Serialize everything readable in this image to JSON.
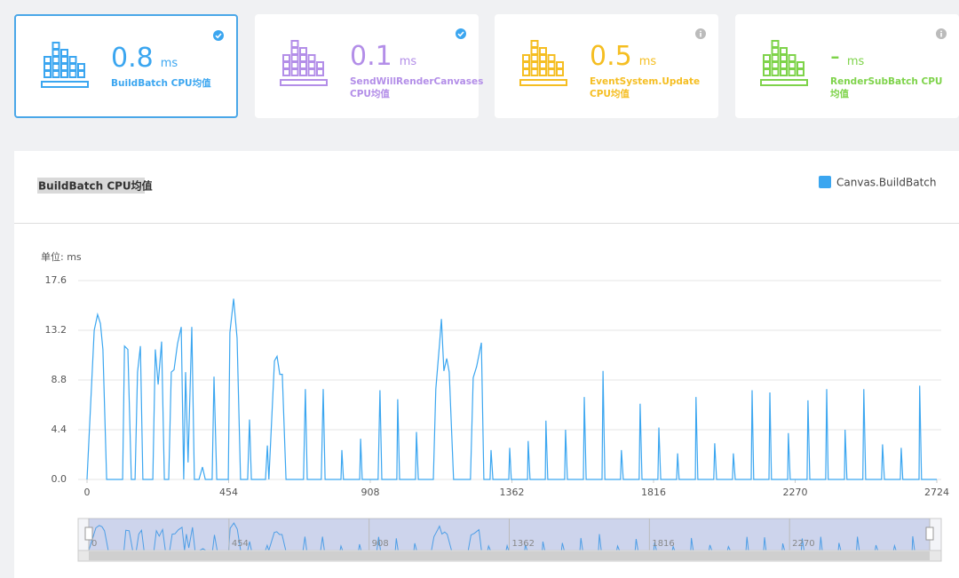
{
  "cards": [
    {
      "value": "0.8",
      "unit": "ms",
      "label": "BuildBatch CPU均值",
      "color": "#3ba6f0"
    },
    {
      "value": "0.1",
      "unit": "ms",
      "label": "SendWillRenderCanvases CPU均值",
      "color": "#b38ee8"
    },
    {
      "value": "0.5",
      "unit": "ms",
      "label": "EventSystem.Update CPU均值",
      "color": "#f5be22"
    },
    {
      "value": "-",
      "unit": "ms",
      "label": "RenderSubBatch CPU均值",
      "color": "#7ed34a"
    }
  ],
  "chart_data": {
    "type": "line",
    "title": "BuildBatch CPU均值",
    "unit_label": "单位: ms",
    "x": [
      0,
      23,
      34,
      43,
      51,
      63,
      114,
      120,
      131,
      142,
      154,
      162,
      171,
      179,
      211,
      219,
      228,
      239,
      248,
      262,
      270,
      279,
      290,
      302,
      310,
      316,
      324,
      336,
      344,
      359,
      370,
      379,
      401,
      407,
      416,
      453,
      458,
      470,
      481,
      492,
      515,
      521,
      527,
      572,
      578,
      583,
      601,
      609,
      618,
      626,
      638,
      694,
      700,
      706,
      751,
      757,
      763,
      814,
      817,
      822,
      874,
      877,
      882,
      933,
      939,
      945,
      993,
      996,
      1002,
      1053,
      1056,
      1062,
      1110,
      1118,
      1130,
      1136,
      1144,
      1153,
      1161,
      1175,
      1229,
      1238,
      1249,
      1264,
      1272,
      1292,
      1295,
      1301,
      1352,
      1355,
      1360,
      1412,
      1414,
      1420,
      1469,
      1471,
      1477,
      1531,
      1534,
      1540,
      1591,
      1594,
      1600,
      1651,
      1654,
      1660,
      1710,
      1713,
      1719,
      1770,
      1773,
      1779,
      1830,
      1833,
      1839,
      1890,
      1893,
      1898,
      1950,
      1952,
      1958,
      2009,
      2012,
      2018,
      2069,
      2072,
      2078,
      2129,
      2132,
      2137,
      2186,
      2189,
      2194,
      2246,
      2248,
      2254,
      2308,
      2311,
      2317,
      2368,
      2371,
      2376,
      2428,
      2430,
      2436,
      2487,
      2490,
      2496,
      2547,
      2550,
      2556,
      2607,
      2610,
      2615,
      2667,
      2669,
      2675,
      2724
    ],
    "series": [
      {
        "name": "Canvas.BuildBatch",
        "color": "#3ba6f0",
        "values": [
          0,
          13.2,
          14.6,
          13.8,
          11.5,
          0,
          0,
          11.8,
          11.5,
          0,
          0,
          9.5,
          11.8,
          0,
          0,
          11.5,
          8.4,
          12.2,
          0,
          0,
          9.5,
          9.7,
          12,
          13.5,
          0,
          9.5,
          1.5,
          13.5,
          0,
          0,
          1.1,
          0,
          0,
          9.1,
          0,
          0,
          13,
          16,
          12.5,
          0,
          0,
          5.3,
          0,
          0,
          3,
          0,
          10.5,
          10.9,
          9.3,
          9.3,
          0,
          0,
          8,
          0,
          0,
          8,
          0,
          0,
          2.6,
          0,
          0,
          3.6,
          0,
          0,
          7.9,
          0,
          0,
          7.1,
          0,
          0,
          4.2,
          0,
          0,
          8,
          12,
          14.2,
          9.6,
          10.7,
          9.5,
          0,
          0,
          9,
          10,
          12.1,
          0,
          0,
          2.6,
          0,
          0,
          2.8,
          0,
          0,
          3.4,
          0,
          0,
          5.2,
          0,
          0,
          4.4,
          0,
          0,
          7.3,
          0,
          0,
          9.6,
          0,
          0,
          2.6,
          0,
          0,
          6.7,
          0,
          0,
          4.6,
          0,
          0,
          2.3,
          0,
          0,
          7.3,
          0,
          0,
          3.2,
          0,
          0,
          2.3,
          0,
          0,
          7.9,
          0,
          0,
          7.7,
          0,
          0,
          4.1,
          0,
          0,
          7.0,
          0,
          0,
          8.0,
          0,
          0,
          4.4,
          0,
          0,
          8.0,
          0,
          0,
          3.1,
          0,
          0,
          2.8,
          0,
          0,
          8.3,
          0,
          0
        ]
      }
    ],
    "xlim": [
      0,
      2724
    ],
    "xticks": [
      0,
      454,
      908,
      1362,
      1816,
      2270,
      2724
    ],
    "ylim": [
      0,
      17.6
    ],
    "yticks": [
      {
        "value": 0,
        "label": "0.0"
      },
      4.4,
      8.8,
      13.2,
      17.6
    ],
    "grid": true,
    "legend": "top-right"
  }
}
